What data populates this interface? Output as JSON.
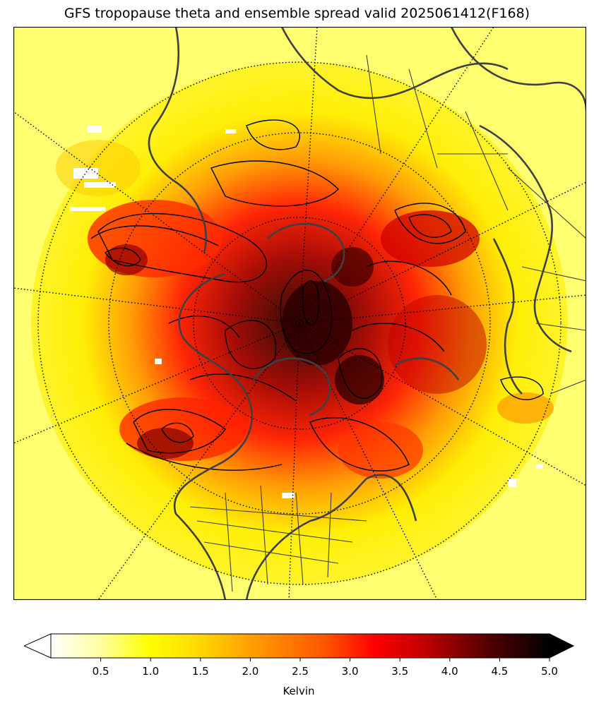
{
  "title": "GFS tropopause theta and ensemble spread valid 2025061412(F168)",
  "colorbar": {
    "label": "Kelvin",
    "ticks": [
      "0.5",
      "1.0",
      "1.5",
      "2.0",
      "2.5",
      "3.0",
      "3.5",
      "4.0",
      "4.5",
      "5.0"
    ],
    "min": 0.0,
    "max": 5.0,
    "extend": "both",
    "colormap": "hot_r",
    "colors": [
      "#ffffff",
      "#ffff66",
      "#ffff00",
      "#ffcc00",
      "#ff8c00",
      "#ff3300",
      "#e00000",
      "#a00000",
      "#500000",
      "#000000"
    ]
  },
  "map": {
    "projection": "north-polar-stereographic",
    "coastline_color": "#404040",
    "contour_color": "#000000",
    "graticule": "dotted"
  }
}
